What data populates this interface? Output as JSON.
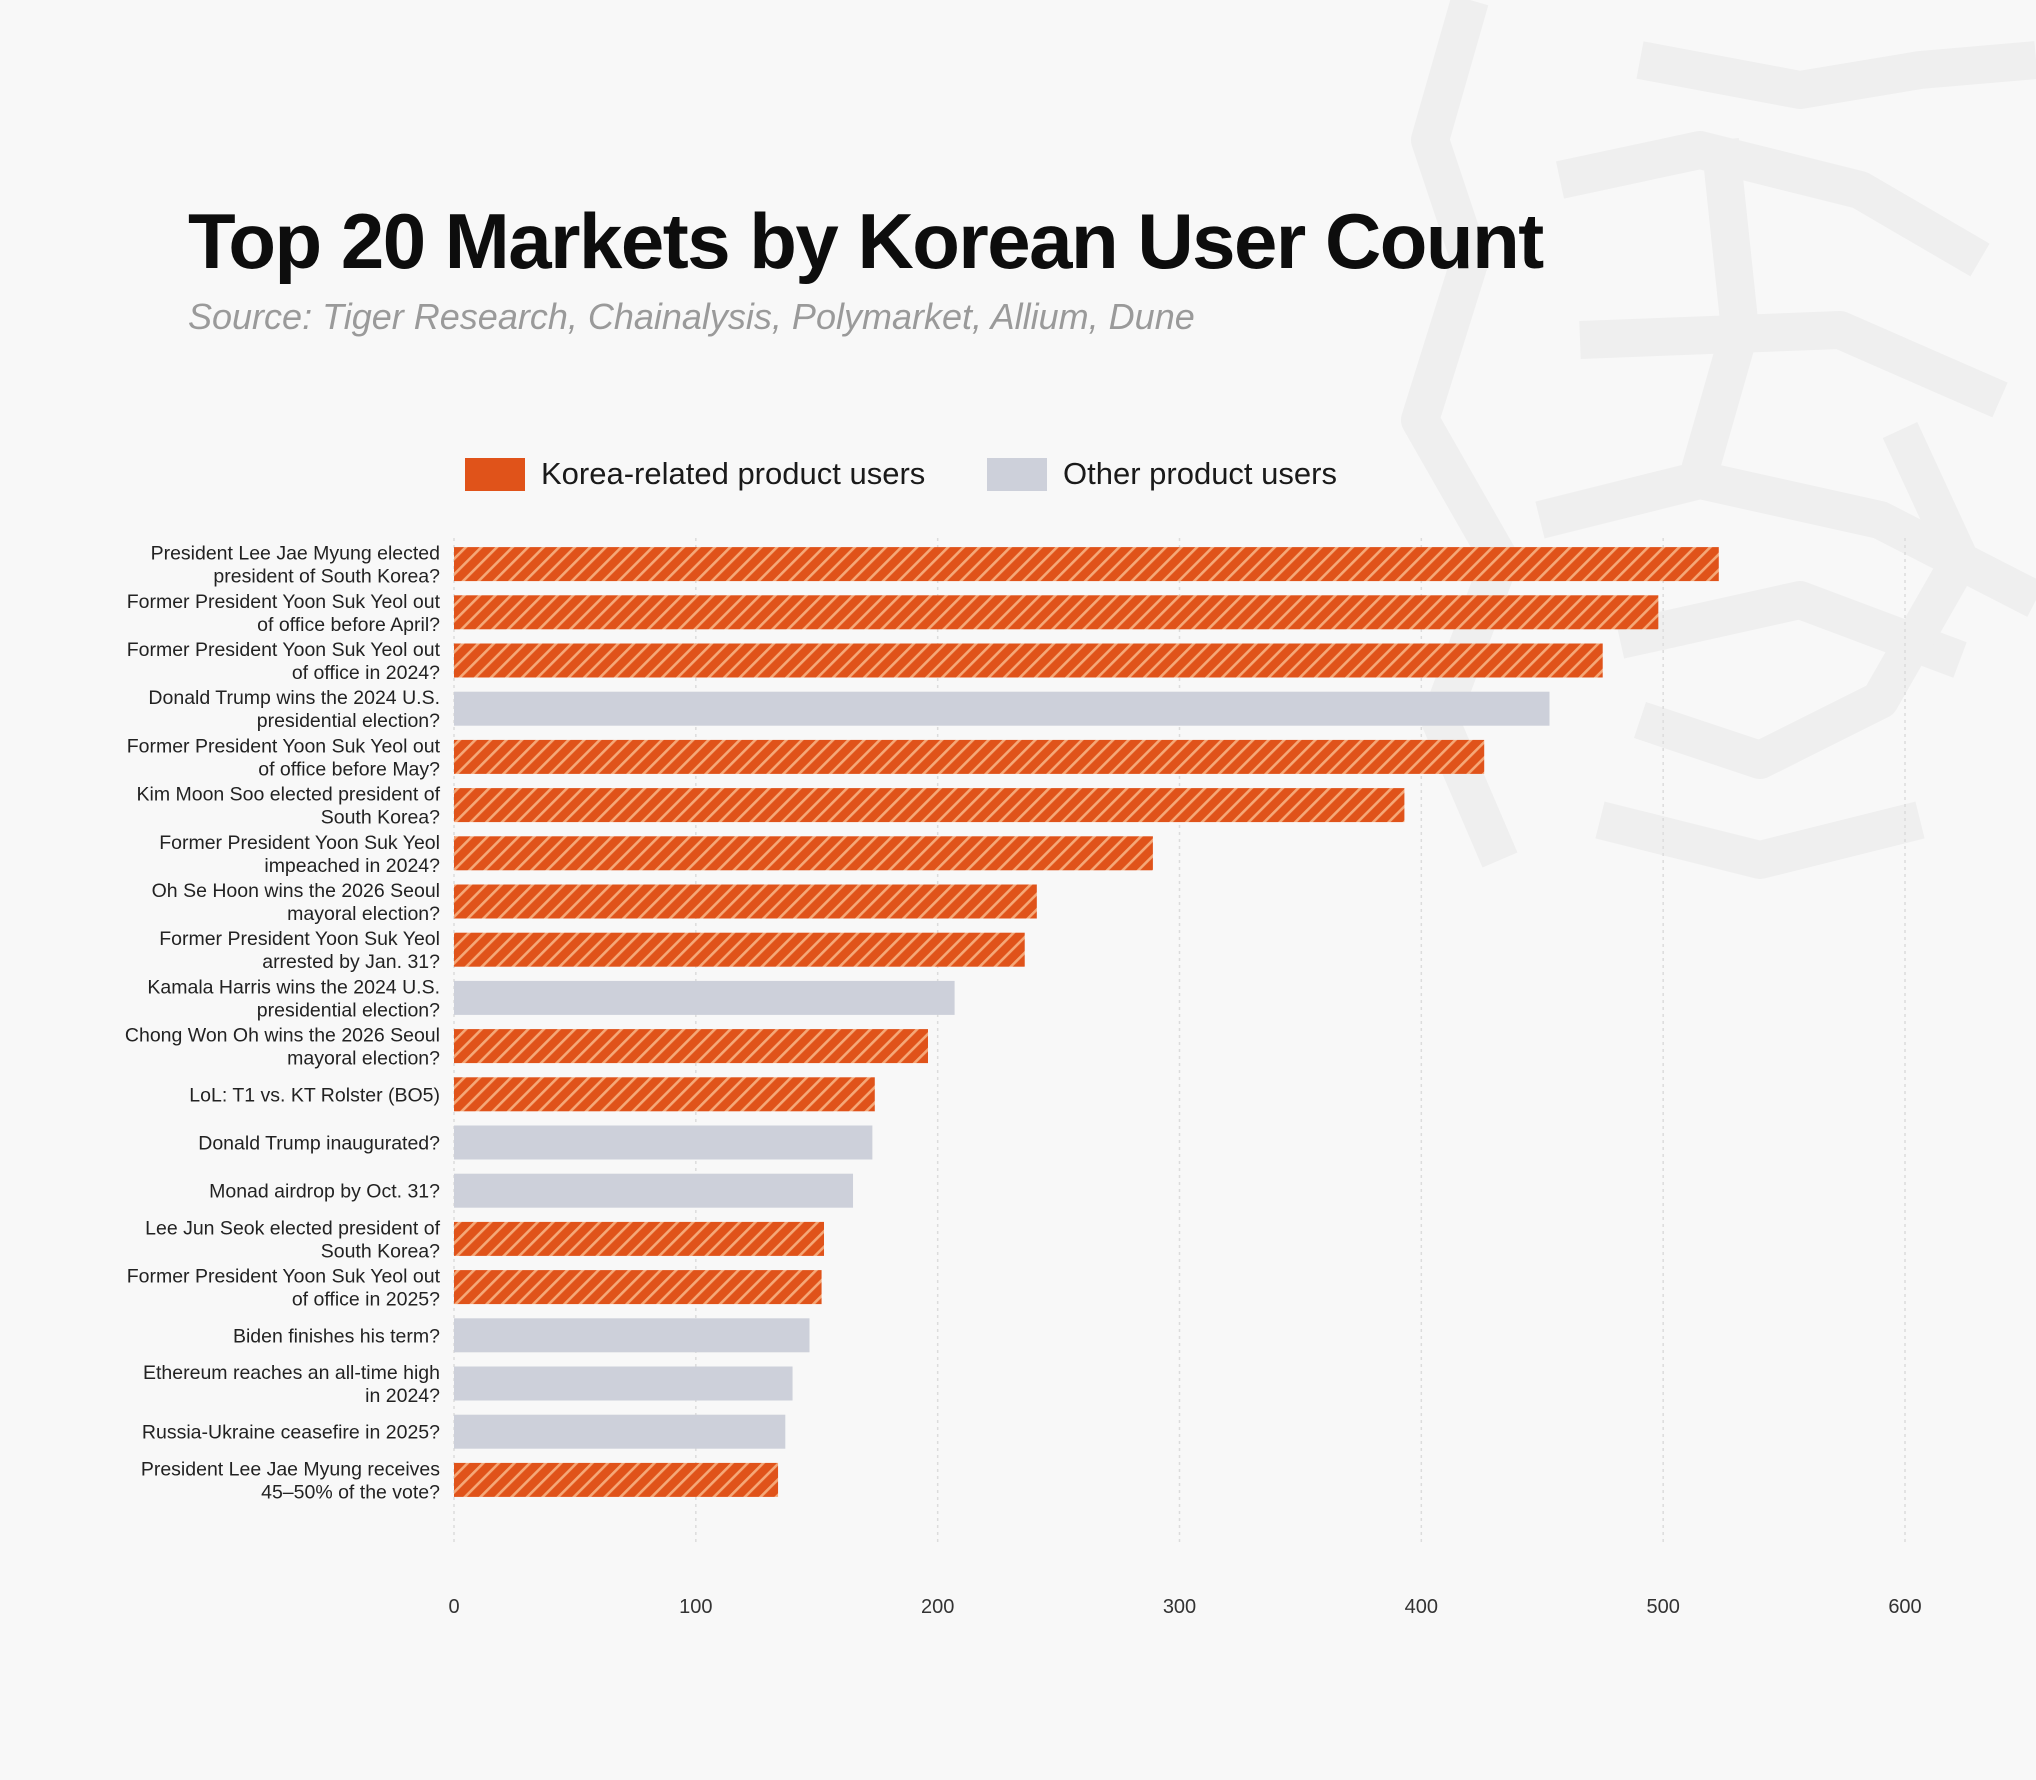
{
  "title": "Top 20 Markets by Korean User Count",
  "subtitle": "Source: Tiger Research, Chainalysis, Polymarket, Allium, Dune",
  "colors": {
    "korea": "#e0531a",
    "korea_stripe": "#f5a878",
    "other": "#cdd0da",
    "grid": "#dcdcdc"
  },
  "chart_data": {
    "type": "bar",
    "orientation": "horizontal",
    "legend_position": "top",
    "grid": true,
    "xlim": [
      0,
      600
    ],
    "xticks": [
      "0",
      "100",
      "200",
      "300",
      "400",
      "500",
      "600"
    ],
    "series": [
      {
        "key": "korea",
        "name": "Korea-related product users"
      },
      {
        "key": "other",
        "name": "Other product users"
      }
    ],
    "bars": [
      {
        "label": [
          "President Lee Jae Myung elected",
          "president of South Korea?"
        ],
        "value": 523,
        "group": "korea"
      },
      {
        "label": [
          "Former President Yoon Suk Yeol out",
          "of office before April?"
        ],
        "value": 498,
        "group": "korea"
      },
      {
        "label": [
          "Former President Yoon Suk Yeol out",
          "of office in 2024?"
        ],
        "value": 475,
        "group": "korea"
      },
      {
        "label": [
          "Donald Trump wins the 2024 U.S.",
          "presidential election?"
        ],
        "value": 453,
        "group": "other"
      },
      {
        "label": [
          "Former President Yoon Suk Yeol out",
          "of office before May?"
        ],
        "value": 426,
        "group": "korea"
      },
      {
        "label": [
          "Kim Moon Soo elected president of",
          "South Korea?"
        ],
        "value": 393,
        "group": "korea"
      },
      {
        "label": [
          "Former President Yoon Suk Yeol",
          "impeached in 2024?"
        ],
        "value": 289,
        "group": "korea"
      },
      {
        "label": [
          "Oh Se Hoon wins the 2026 Seoul",
          "mayoral election?"
        ],
        "value": 241,
        "group": "korea"
      },
      {
        "label": [
          "Former President Yoon Suk Yeol",
          "arrested by Jan. 31?"
        ],
        "value": 236,
        "group": "korea"
      },
      {
        "label": [
          "Kamala Harris wins the 2024 U.S.",
          "presidential election?"
        ],
        "value": 207,
        "group": "other"
      },
      {
        "label": [
          "Chong Won Oh wins the 2026 Seoul",
          "mayoral election?"
        ],
        "value": 196,
        "group": "korea"
      },
      {
        "label": [
          "LoL: T1 vs. KT Rolster (BO5)"
        ],
        "value": 174,
        "group": "korea"
      },
      {
        "label": [
          "Donald Trump inaugurated?"
        ],
        "value": 173,
        "group": "other"
      },
      {
        "label": [
          "Monad airdrop by Oct. 31?"
        ],
        "value": 165,
        "group": "other"
      },
      {
        "label": [
          "Lee Jun Seok elected president of",
          "South Korea?"
        ],
        "value": 153,
        "group": "korea"
      },
      {
        "label": [
          "Former President Yoon Suk Yeol out",
          "of office in 2025?"
        ],
        "value": 152,
        "group": "korea"
      },
      {
        "label": [
          "Biden finishes his term?"
        ],
        "value": 147,
        "group": "other"
      },
      {
        "label": [
          "Ethereum reaches an all-time high",
          "in 2024?"
        ],
        "value": 140,
        "group": "other"
      },
      {
        "label": [
          "Russia-Ukraine ceasefire in 2025?"
        ],
        "value": 137,
        "group": "other"
      },
      {
        "label": [
          "President Lee Jae Myung receives",
          "45–50% of the vote?"
        ],
        "value": 134,
        "group": "korea"
      }
    ]
  }
}
